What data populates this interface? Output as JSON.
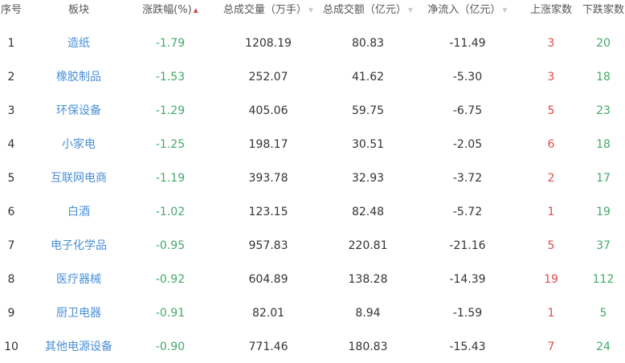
{
  "headers": [
    "序号",
    "板块",
    "涨跌幅(%)",
    "总成交量（万手）",
    "总成交额（亿元）",
    "净流入（亿元）",
    "上涨家数",
    "下跌家数"
  ],
  "sort": {
    "active_column": "涨跌幅(%)",
    "up_icon": "▲",
    "down_icon": "▼"
  },
  "colors": {
    "link": "#4a8fd6",
    "down": "#44a96a",
    "up": "#e24a4a"
  },
  "rows": [
    [
      "1",
      "造纸",
      "-1.79",
      "1208.19",
      "80.83",
      "-11.49",
      "3",
      "20"
    ],
    [
      "2",
      "橡胶制品",
      "-1.53",
      "252.07",
      "41.62",
      "-5.30",
      "3",
      "18"
    ],
    [
      "3",
      "环保设备",
      "-1.29",
      "405.06",
      "59.75",
      "-6.75",
      "5",
      "23"
    ],
    [
      "4",
      "小家电",
      "-1.25",
      "198.17",
      "30.51",
      "-2.05",
      "6",
      "18"
    ],
    [
      "5",
      "互联网电商",
      "-1.19",
      "393.78",
      "32.93",
      "-3.72",
      "2",
      "17"
    ],
    [
      "6",
      "白酒",
      "-1.02",
      "123.15",
      "82.48",
      "-5.72",
      "1",
      "19"
    ],
    [
      "7",
      "电子化学品",
      "-0.95",
      "957.83",
      "220.81",
      "-21.16",
      "5",
      "37"
    ],
    [
      "8",
      "医疗器械",
      "-0.92",
      "604.89",
      "138.28",
      "-14.39",
      "19",
      "112"
    ],
    [
      "9",
      "厨卫电器",
      "-0.91",
      "82.01",
      "8.94",
      "-1.59",
      "1",
      "5"
    ],
    [
      "10",
      "其他电源设备",
      "-0.90",
      "771.46",
      "180.83",
      "-15.43",
      "7",
      "24"
    ]
  ]
}
